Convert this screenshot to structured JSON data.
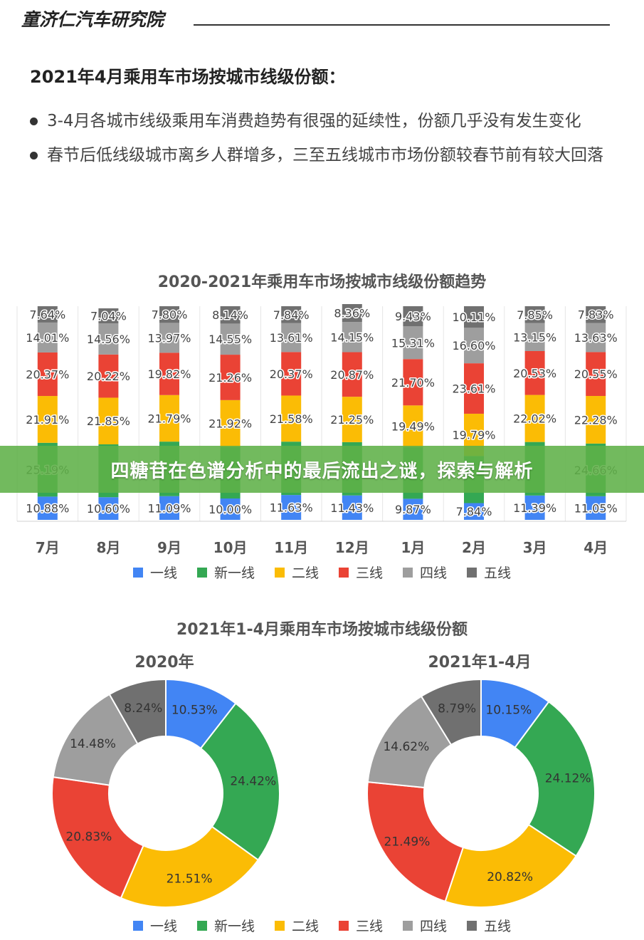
{
  "brand": "童济仁汽车研究院",
  "heading": "2021年4月乘用车市场按城市线级份额：",
  "bullets": [
    "3-4月各城市线级乘用车消费趋势有很强的延续性，份额几乎没有发生变化",
    "春节后低线级城市离乡人群增多，三至五线城市市场份额较春节前有较大回落"
  ],
  "banner": "四糖苷在色谱分析中的最后流出之谜，探索与解析",
  "colors": {
    "一线": "#4285F4",
    "新一线": "#34A853",
    "二线": "#FBBC05",
    "三线": "#EA4335",
    "四线": "#9E9E9E",
    "五线": "#707070"
  },
  "legend": [
    "一线",
    "新一线",
    "二线",
    "三线",
    "四线",
    "五线"
  ],
  "chart_data": [
    {
      "type": "bar",
      "stacked": true,
      "percent": true,
      "title": "2020-2021年乘用车市场按城市线级份额趋势",
      "categories": [
        "7月",
        "8月",
        "9月",
        "10月",
        "11月",
        "12月",
        "1月",
        "2月",
        "3月",
        "4月"
      ],
      "series": [
        {
          "name": "一线",
          "values": [
            10.88,
            10.6,
            11.09,
            10.0,
            11.63,
            11.43,
            9.87,
            7.84,
            11.39,
            11.05
          ]
        },
        {
          "name": "新一线",
          "values": [
            25.19,
            24.73,
            25.53,
            24.13,
            24.97,
            24.94,
            24.2,
            22.05,
            25.06,
            24.66
          ]
        },
        {
          "name": "二线",
          "values": [
            21.91,
            21.85,
            21.79,
            21.92,
            21.58,
            21.25,
            19.49,
            19.79,
            22.02,
            22.28
          ]
        },
        {
          "name": "三线",
          "values": [
            20.37,
            20.22,
            19.82,
            21.26,
            20.37,
            20.87,
            21.7,
            23.61,
            20.53,
            20.55
          ]
        },
        {
          "name": "四线",
          "values": [
            14.01,
            14.56,
            13.97,
            14.55,
            13.61,
            14.15,
            15.31,
            16.6,
            13.15,
            13.63
          ]
        },
        {
          "name": "五线",
          "values": [
            7.64,
            7.04,
            7.8,
            8.14,
            7.84,
            8.36,
            9.43,
            10.11,
            7.85,
            7.83
          ]
        }
      ],
      "data_labels": [
        [
          "10.88%",
          "10.60%",
          "11.09%",
          "10.00%",
          "11.63%",
          "11.43%",
          "9.87%",
          "7.84%",
          "11.39%",
          "11.05%"
        ],
        [
          "25.19%",
          "",
          "",
          "",
          "",
          "",
          "",
          "",
          "",
          "24.66%"
        ],
        [
          "21.91%",
          "21.85%",
          "21.79%",
          "21.92%",
          "21.58%",
          "21.25%",
          "19.49%",
          "19.79%",
          "22.02%",
          "22.28%"
        ],
        [
          "20.37%",
          "20.22%",
          "19.82%",
          "21.26%",
          "20.37%",
          "20.87%",
          "21.70%",
          "23.61%",
          "20.53%",
          "20.55%"
        ],
        [
          "14.01%",
          "14.56%",
          "13.97%",
          "14.55%",
          "13.61%",
          "14.15%",
          "15.31%",
          "16.60%",
          "13.15%",
          "13.63%"
        ],
        [
          "7.64%",
          "7.04%",
          "7.80%",
          "8.14%",
          "7.84%",
          "8.36%",
          "9.43%",
          "10.11%",
          "7.85%",
          "7.83%"
        ]
      ],
      "ylim": [
        0,
        100
      ],
      "grid": true,
      "legend_position": "bottom"
    },
    {
      "type": "pie",
      "donut": true,
      "title": "2021年1-4月乘用车市场按城市线级份额",
      "subtitle": "2020年",
      "labels": [
        "一线",
        "新一线",
        "二线",
        "三线",
        "四线",
        "五线"
      ],
      "values": [
        10.53,
        24.42,
        21.51,
        20.83,
        14.48,
        8.24
      ],
      "data_labels": [
        "10.53%",
        "24.42%",
        "21.51%",
        "20.83%",
        "14.48%",
        "8.24%"
      ],
      "legend_position": "bottom"
    },
    {
      "type": "pie",
      "donut": true,
      "title": "2021年1-4月乘用车市场按城市线级份额",
      "subtitle": "2021年1-4月",
      "labels": [
        "一线",
        "新一线",
        "二线",
        "三线",
        "四线",
        "五线"
      ],
      "values": [
        10.15,
        24.12,
        20.82,
        21.49,
        14.62,
        8.79
      ],
      "data_labels": [
        "10.15%",
        "24.12%",
        "20.82%",
        "21.49%",
        "14.62%",
        "8.79%"
      ],
      "legend_position": "bottom"
    }
  ]
}
